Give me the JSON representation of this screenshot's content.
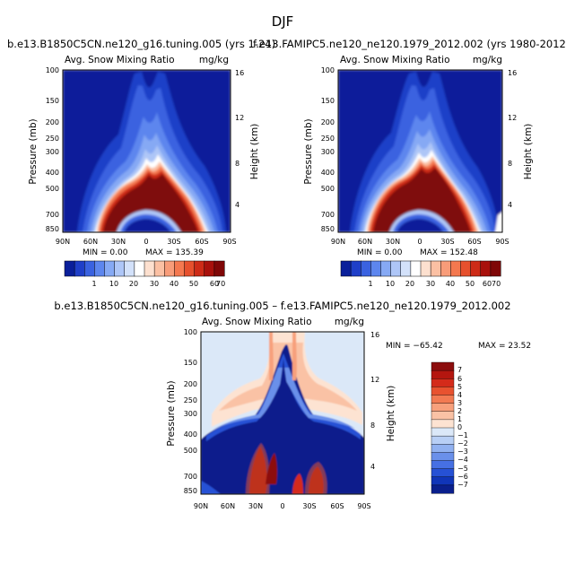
{
  "figure": {
    "title": "DJF",
    "vertical_label": "Pressure (mb)",
    "height_label": "Height (km)",
    "var_label": "Avg. Snow Mixing Ratio",
    "units": "mg/kg"
  },
  "chart_data": [
    {
      "type": "heatmap",
      "name": "model-a",
      "title": "b.e13.B1850C5CN.ne120_g16.tuning.005 (yrs 1-24)",
      "subtitle_left": "Avg. Snow Mixing Ratio",
      "subtitle_right": "mg/kg",
      "x_ticks": [
        "90N",
        "60N",
        "30N",
        "0",
        "30S",
        "60S",
        "90S"
      ],
      "y_ticks": [
        "100",
        "150",
        "200",
        "250",
        "300",
        "400",
        "500",
        "700",
        "850"
      ],
      "y2_ticks": [
        "4",
        "8",
        "12",
        "16"
      ],
      "xlabel": "",
      "ylabel": "Pressure (mb)",
      "y2label": "Height (km)",
      "min_text": "MIN =    0.00",
      "max_text": "MAX =  135.39",
      "colorbar_labels": [
        "1",
        "10",
        "20",
        "30",
        "40",
        "50",
        "60",
        "70"
      ],
      "colorbar_colors": [
        "#0a1f9a",
        "#1f3fc8",
        "#3a62e0",
        "#5d86ee",
        "#86a9f4",
        "#aec6f7",
        "#d3e1fa",
        "#ffffff",
        "#fde0cf",
        "#fbc0a3",
        "#f89c79",
        "#f4784f",
        "#e6502d",
        "#cd2b17",
        "#a8110c",
        "#7f0707"
      ]
    },
    {
      "type": "heatmap",
      "name": "model-b",
      "title": "f.e13.FAMIPC5.ne120_ne120.1979_2012.002 (yrs 1980-2012)",
      "subtitle_left": "Avg. Snow Mixing Ratio",
      "subtitle_right": "mg/kg",
      "x_ticks": [
        "90N",
        "60N",
        "30N",
        "0",
        "30S",
        "60S",
        "90S"
      ],
      "y_ticks": [
        "100",
        "150",
        "200",
        "250",
        "300",
        "400",
        "500",
        "700",
        "850"
      ],
      "y2_ticks": [
        "4",
        "8",
        "12",
        "16"
      ],
      "xlabel": "",
      "ylabel": "Pressure (mb)",
      "y2label": "Height (km)",
      "min_text": "MIN =    0.00",
      "max_text": "MAX =  152.48",
      "colorbar_labels": [
        "1",
        "10",
        "20",
        "30",
        "40",
        "50",
        "60",
        "70"
      ],
      "colorbar_colors": [
        "#0a1f9a",
        "#1f3fc8",
        "#3a62e0",
        "#5d86ee",
        "#86a9f4",
        "#aec6f7",
        "#d3e1fa",
        "#ffffff",
        "#fde0cf",
        "#fbc0a3",
        "#f89c79",
        "#f4784f",
        "#e6502d",
        "#cd2b17",
        "#a8110c",
        "#7f0707"
      ]
    },
    {
      "type": "heatmap",
      "name": "difference",
      "title": "b.e13.B1850C5CN.ne120_g16.tuning.005 – f.e13.FAMIPC5.ne120_ne120.1979_2012.002",
      "subtitle_left": "Avg. Snow Mixing Ratio",
      "subtitle_right": "mg/kg",
      "x_ticks": [
        "90N",
        "60N",
        "30N",
        "0",
        "30S",
        "60S",
        "90S"
      ],
      "y_ticks": [
        "100",
        "150",
        "200",
        "250",
        "300",
        "400",
        "500",
        "700",
        "850"
      ],
      "y2_ticks": [
        "4",
        "8",
        "12",
        "16"
      ],
      "xlabel": "",
      "ylabel": "Pressure (mb)",
      "y2label": "Height (km)",
      "min_text": "MIN = −65.42",
      "max_text": "MAX =   23.52",
      "colorbar_labels": [
        "7",
        "6",
        "5",
        "4",
        "3",
        "2",
        "1",
        "0",
        "−1",
        "−2",
        "−3",
        "−4",
        "−5",
        "−6",
        "−7"
      ],
      "colorbar_colors": [
        "#8c0d0d",
        "#b4160f",
        "#d42b1a",
        "#e8522f",
        "#f27a52",
        "#f7a07c",
        "#fac2a5",
        "#fde3d2",
        "#dbe8f8",
        "#b8cff5",
        "#91b1f0",
        "#6a90ea",
        "#4670e3",
        "#2651d5",
        "#1035b8",
        "#0a1f8c"
      ]
    }
  ]
}
